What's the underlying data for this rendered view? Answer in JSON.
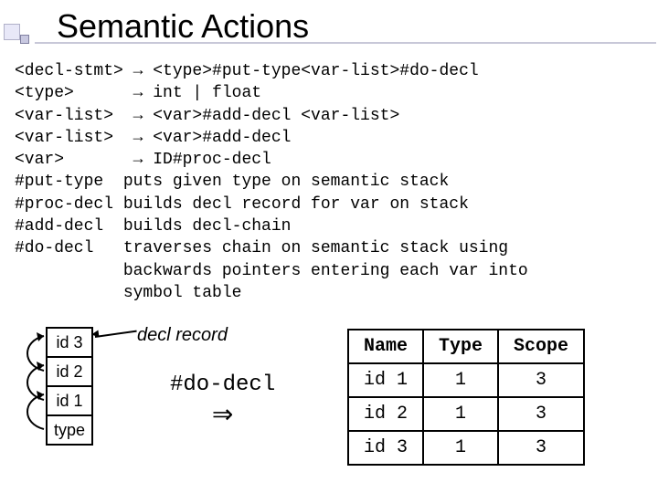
{
  "title": "Semantic Actions",
  "grammar_lines": [
    "<decl-stmt> → <type>#put-type<var-list>#do-decl",
    "<type>      → int | float",
    "<var-list>  → <var>#add-decl <var-list>",
    "<var-list>  → <var>#add-decl",
    "<var>       → ID#proc-decl",
    "#put-type  puts given type on semantic stack",
    "#proc-decl builds decl record for var on stack",
    "#add-decl  builds decl-chain",
    "#do-decl   traverses chain on semantic stack using",
    "           backwards pointers entering each var into",
    "           symbol table"
  ],
  "stack": [
    "id 3",
    "id 2",
    "id 1",
    "type"
  ],
  "decl_record_label": "decl record",
  "do_decl_label": "#do-decl",
  "do_decl_arrow": "⇒",
  "table": {
    "headers": [
      "Name",
      "Type",
      "Scope"
    ],
    "rows": [
      [
        "id 1",
        "1",
        "3"
      ],
      [
        "id 2",
        "1",
        "3"
      ],
      [
        "id 3",
        "1",
        "3"
      ]
    ]
  },
  "colors": {
    "text": "#000000",
    "bg": "#ffffff",
    "deco_fill": "#e8e8f8",
    "deco_border": "#b0b0c8"
  }
}
